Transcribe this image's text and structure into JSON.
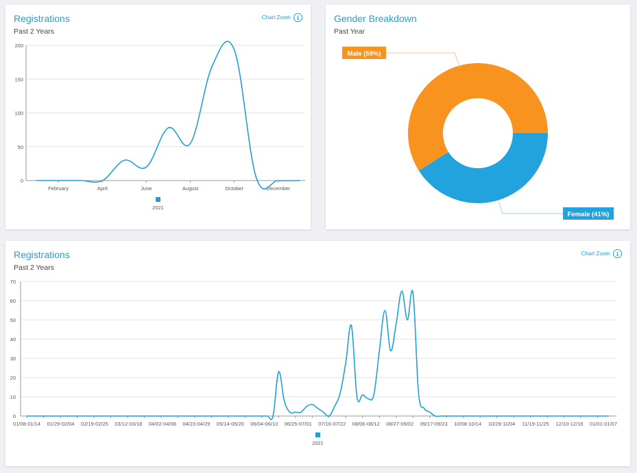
{
  "colors": {
    "accent": "#1f9fd8",
    "male": "#f7931e",
    "female": "#22a3dd",
    "grid": "#e3e3e3"
  },
  "panels": {
    "top_left": {
      "title": "Registrations",
      "subtitle": "Past 2 Years",
      "zoom_label": "Chart Zoom",
      "zoom_icon": "info-icon"
    },
    "top_right": {
      "title": "Gender Breakdown",
      "subtitle": "Past Year"
    },
    "bottom": {
      "title": "Registrations",
      "subtitle": "Past 2 Years",
      "zoom_label": "Chart Zoom",
      "zoom_icon": "info-icon"
    }
  },
  "chart_data": [
    {
      "type": "line",
      "title": "Registrations",
      "subtitle": "Past 2 Years",
      "x": [
        1,
        2,
        3,
        4,
        5,
        6,
        7,
        8,
        9,
        10,
        11,
        12,
        13
      ],
      "x_tick_labels": [
        "February",
        "April",
        "June",
        "August",
        "October",
        "December"
      ],
      "x_tick_positions": [
        2,
        4,
        6,
        8,
        10,
        12
      ],
      "ylim": [
        0,
        200
      ],
      "y_ticks": [
        0,
        50,
        100,
        150,
        200
      ],
      "series": [
        {
          "name": "2021",
          "values": [
            0,
            0,
            0,
            0,
            30,
            20,
            78,
            55,
            170,
            193,
            4,
            0,
            0
          ]
        }
      ],
      "grid": true,
      "legend": "bottom"
    },
    {
      "type": "pie",
      "title": "Gender Breakdown",
      "subtitle": "Past Year",
      "slices": [
        {
          "label": "Male (59%)",
          "value": 59,
          "color": "#f7931e"
        },
        {
          "label": "Female (41%)",
          "value": 41,
          "color": "#22a3dd"
        }
      ],
      "donut": true
    },
    {
      "type": "line",
      "title": "Registrations",
      "subtitle": "Past 2 Years",
      "x_tick_labels": [
        "01/08-01/14",
        "01/29-02/04",
        "02/19-02/25",
        "03/12-03/18",
        "04/02-04/08",
        "04/23-04/29",
        "05/14-05/20",
        "06/04-06/10",
        "06/25-07/01",
        "07/16-07/22",
        "08/06-08/12",
        "08/27-09/02",
        "09/17-09/23",
        "10/08-10/14",
        "10/29-11/04",
        "11/19-11/25",
        "12/10-12/16",
        "01/01-01/07"
      ],
      "ylim": [
        0,
        70
      ],
      "y_ticks": [
        0,
        10,
        20,
        30,
        40,
        50,
        60,
        70
      ],
      "series": [
        {
          "name": "2021",
          "values": [
            0,
            0,
            0,
            0,
            0,
            0,
            0,
            0,
            0,
            0,
            0,
            0,
            0,
            0,
            0,
            0,
            0,
            0,
            0,
            0,
            0,
            0,
            0,
            0,
            0,
            0,
            0,
            0,
            0,
            0,
            0,
            0,
            0,
            0,
            0,
            0,
            0,
            0,
            0,
            0,
            0,
            0,
            0,
            0,
            0,
            23,
            8,
            2,
            2,
            2,
            5,
            6,
            4,
            2,
            0,
            5,
            12,
            28,
            47,
            10,
            11,
            9,
            11,
            34,
            55,
            34,
            48,
            65,
            50,
            64,
            12,
            4,
            2,
            0,
            0,
            0,
            0,
            0,
            0,
            0,
            0,
            0,
            0,
            0,
            0,
            0,
            0,
            0,
            0,
            0,
            0,
            0,
            0,
            0,
            0,
            0,
            0,
            0,
            0,
            0,
            0,
            0,
            0,
            0,
            0
          ]
        }
      ],
      "grid": true,
      "legend": "bottom"
    }
  ]
}
